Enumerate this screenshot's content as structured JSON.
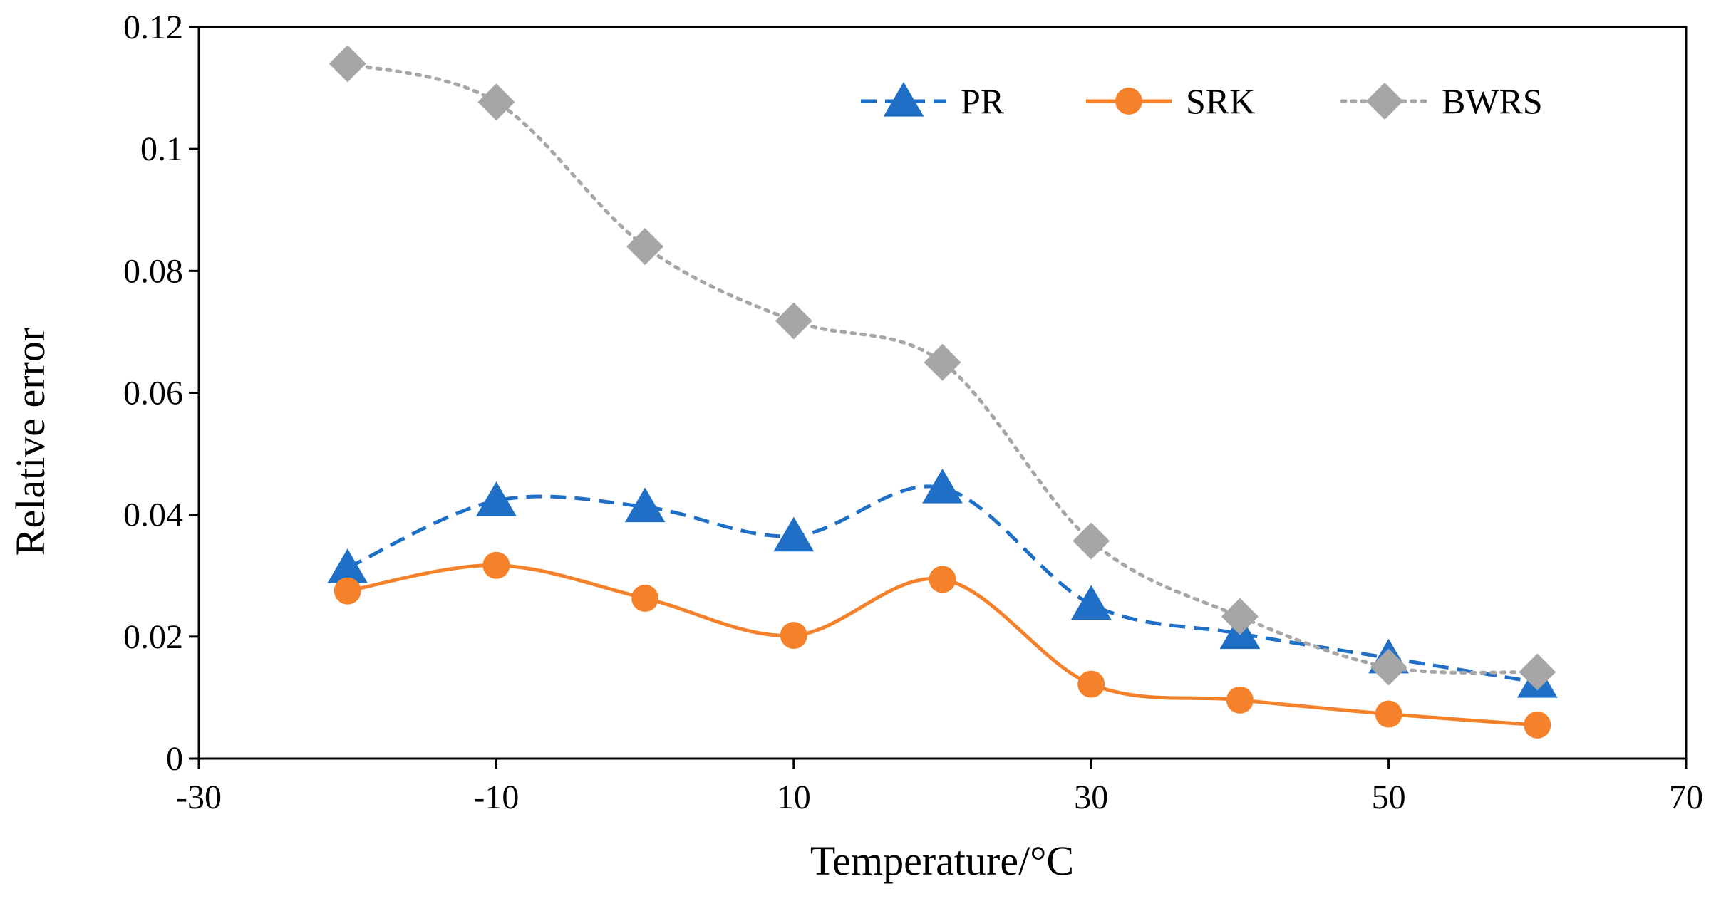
{
  "chart_data": {
    "type": "line",
    "title": "",
    "xlabel": "Temperature/°C",
    "ylabel": "Relative error",
    "xlim": [
      -30,
      70
    ],
    "ylim": [
      0,
      0.12
    ],
    "xticks": [
      -30,
      -10,
      10,
      30,
      50,
      70
    ],
    "xtick_labels": [
      "-30",
      "-10",
      "10",
      "30",
      "50",
      "70"
    ],
    "yticks": [
      0,
      0.02,
      0.04,
      0.06,
      0.08,
      0.1,
      0.12
    ],
    "ytick_labels": [
      "0",
      "0.02",
      "0.04",
      "0.06",
      "0.08",
      "0.1",
      "0.12"
    ],
    "grid": false,
    "legend_position": "top-right",
    "x": [
      -20,
      -10,
      0,
      10,
      20,
      30,
      40,
      50,
      60
    ],
    "series": [
      {
        "name": "PR",
        "values": [
          0.0313,
          0.0423,
          0.0413,
          0.0365,
          0.0444,
          0.0253,
          0.0205,
          0.0165,
          0.0125
        ],
        "color": "#1f6fc6",
        "line_style": "dashed",
        "marker": "triangle"
      },
      {
        "name": "SRK",
        "values": [
          0.0275,
          0.0317,
          0.0263,
          0.0202,
          0.0294,
          0.0122,
          0.0096,
          0.0073,
          0.0055
        ],
        "color": "#f5822a",
        "line_style": "solid",
        "marker": "circle"
      },
      {
        "name": "BWRS",
        "values": [
          0.114,
          0.1077,
          0.084,
          0.0718,
          0.065,
          0.0357,
          0.0233,
          0.015,
          0.0142
        ],
        "color": "#a6a6a6",
        "line_style": "dotted",
        "marker": "diamond"
      }
    ]
  }
}
